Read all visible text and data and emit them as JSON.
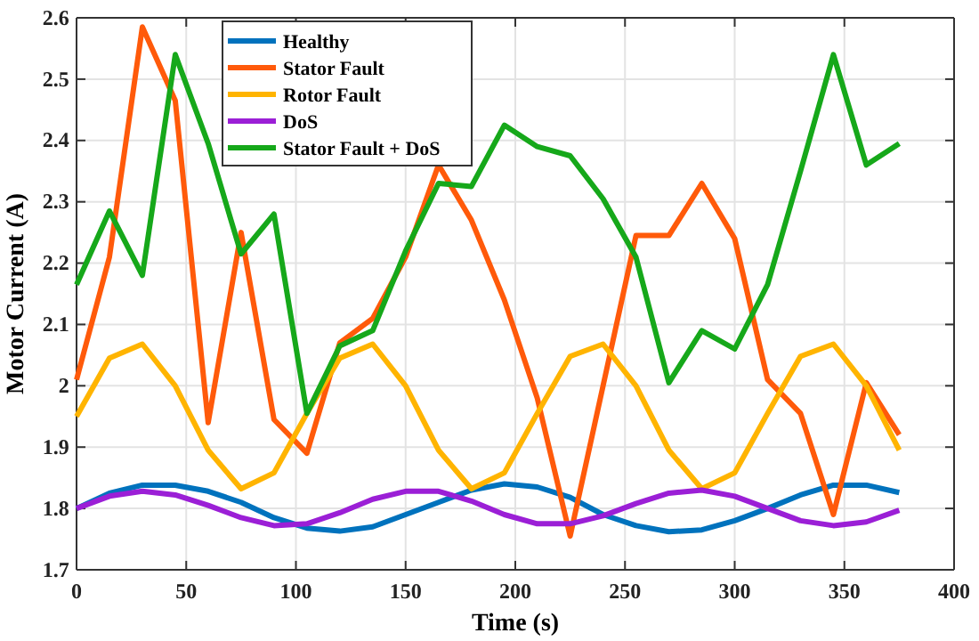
{
  "chart_data": {
    "type": "line",
    "xlabel": "Time (s)",
    "ylabel": "Motor Current (A)",
    "x": [
      0,
      15,
      30,
      45,
      60,
      75,
      90,
      105,
      120,
      135,
      150,
      165,
      180,
      195,
      210,
      225,
      240,
      255,
      270,
      285,
      300,
      315,
      330,
      345,
      360,
      375
    ],
    "xlim": [
      0,
      400
    ],
    "xticks": [
      0,
      50,
      100,
      150,
      200,
      250,
      300,
      350,
      400
    ],
    "ylim": [
      1.7,
      2.6
    ],
    "yticks": [
      {
        "value": 1.7,
        "label": "1.7"
      },
      {
        "value": 1.8,
        "label": "1.8"
      },
      {
        "value": 1.9,
        "label": "1.9"
      },
      {
        "value": 2.0,
        "label": "2"
      },
      {
        "value": 2.1,
        "label": "2.1"
      },
      {
        "value": 2.2,
        "label": "2.2"
      },
      {
        "value": 2.3,
        "label": "2.3"
      },
      {
        "value": 2.4,
        "label": "2.4"
      },
      {
        "value": 2.5,
        "label": "2.5"
      },
      {
        "value": 2.6,
        "label": "2.6"
      }
    ],
    "grid": true,
    "legend": "top left",
    "marker": "none",
    "line_style": "solid",
    "series": [
      {
        "name": "Healthy",
        "color": "#0072bd",
        "values": [
          1.8,
          1.825,
          1.838,
          1.838,
          1.828,
          1.81,
          1.785,
          1.768,
          1.763,
          1.77,
          1.79,
          1.81,
          1.83,
          1.84,
          1.835,
          1.818,
          1.79,
          1.772,
          1.762,
          1.765,
          1.78,
          1.8,
          1.822,
          1.838,
          1.838,
          1.826
        ]
      },
      {
        "name": "Stator Fault",
        "color": "#ff5a0a",
        "values": [
          2.01,
          2.21,
          2.585,
          2.465,
          1.94,
          2.25,
          1.945,
          1.89,
          2.07,
          2.11,
          2.21,
          2.36,
          2.27,
          2.14,
          1.98,
          1.755,
          2.0,
          2.245,
          2.245,
          2.33,
          2.24,
          2.01,
          1.955,
          1.79,
          2.005,
          1.92
        ]
      },
      {
        "name": "Rotor Fault",
        "color": "#ffb400",
        "values": [
          1.95,
          2.045,
          2.068,
          2.0,
          1.895,
          1.832,
          1.858,
          1.955,
          2.045,
          2.068,
          2.0,
          1.895,
          1.832,
          1.858,
          1.955,
          2.048,
          2.068,
          2.0,
          1.895,
          1.832,
          1.858,
          1.955,
          2.048,
          2.068,
          2.0,
          1.895
        ]
      },
      {
        "name": "DoS",
        "color": "#9b1fd6",
        "values": [
          1.8,
          1.82,
          1.828,
          1.822,
          1.805,
          1.785,
          1.772,
          1.775,
          1.793,
          1.815,
          1.828,
          1.828,
          1.812,
          1.79,
          1.775,
          1.775,
          1.788,
          1.808,
          1.825,
          1.83,
          1.82,
          1.8,
          1.78,
          1.772,
          1.778,
          1.797
        ]
      },
      {
        "name": "Stator Fault + DoS",
        "color": "#16a81a",
        "values": [
          2.165,
          2.285,
          2.18,
          2.54,
          2.395,
          2.215,
          2.28,
          1.955,
          2.065,
          2.09,
          2.22,
          2.33,
          2.325,
          2.425,
          2.39,
          2.375,
          2.305,
          2.21,
          2.005,
          2.09,
          2.06,
          2.165,
          2.35,
          2.54,
          2.36,
          2.395
        ]
      }
    ]
  }
}
